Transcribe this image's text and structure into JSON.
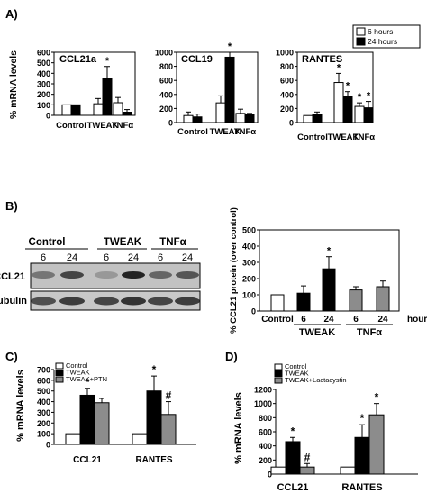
{
  "panel_labels": [
    "A)",
    "B)",
    "C)",
    "D)"
  ],
  "colors": {
    "white": "#ffffff",
    "black": "#000000",
    "gray": "#8c8c8c"
  },
  "blot": {
    "group_labels": [
      "Control",
      "TWEAK",
      "TNFα"
    ],
    "lane_labels": [
      "6",
      "24",
      "6",
      "24",
      "6",
      "24"
    ],
    "row_labels": [
      "CCL21",
      "α-tubulin"
    ]
  },
  "chart_data": [
    {
      "type": "bar",
      "panel": "A",
      "title": "CCL21a",
      "ylabel": "% mRNA levels",
      "categories": [
        "Control",
        "TWEAK",
        "TNFα"
      ],
      "yticks": [
        "0",
        "100",
        "200",
        "300",
        "400",
        "500",
        "600"
      ],
      "ylim": [
        0,
        600
      ],
      "series": [
        {
          "name": "6 hours",
          "color": "white",
          "values": [
            100,
            110,
            120
          ],
          "errors": [
            0,
            50,
            50
          ]
        },
        {
          "name": "24 hours",
          "color": "black",
          "values": [
            100,
            350,
            30
          ],
          "errors": [
            0,
            115,
            25
          ]
        }
      ],
      "annotations": [
        {
          "category": 1,
          "series": 1,
          "text": "*"
        }
      ]
    },
    {
      "type": "bar",
      "panel": "A",
      "title": "CCL19",
      "categories": [
        "Control",
        "TWEAK",
        "TNFα"
      ],
      "yticks": [
        "0",
        "200",
        "400",
        "600",
        "800",
        "1000"
      ],
      "ylim": [
        0,
        1000
      ],
      "series": [
        {
          "name": "6 hours",
          "color": "white",
          "values": [
            100,
            280,
            130
          ],
          "errors": [
            50,
            100,
            60
          ]
        },
        {
          "name": "24 hours",
          "color": "black",
          "values": [
            80,
            930,
            110
          ],
          "errors": [
            40,
            70,
            20
          ]
        }
      ],
      "annotations": [
        {
          "category": 1,
          "series": 1,
          "text": "*"
        }
      ]
    },
    {
      "type": "bar",
      "panel": "A",
      "title": "RANTES",
      "categories": [
        "Control",
        "TWEAK",
        "TNFα"
      ],
      "yticks": [
        "0",
        "200",
        "400",
        "600",
        "800",
        "1000"
      ],
      "ylim": [
        0,
        1000
      ],
      "legend": {
        "position": "top-right",
        "entries": [
          "6 hours",
          "24 hours"
        ]
      },
      "series": [
        {
          "name": "6 hours",
          "color": "white",
          "values": [
            100,
            570,
            230
          ],
          "errors": [
            0,
            130,
            50
          ]
        },
        {
          "name": "24 hours",
          "color": "black",
          "values": [
            120,
            370,
            210
          ],
          "errors": [
            30,
            70,
            90
          ]
        }
      ],
      "annotations": [
        {
          "category": 1,
          "series": 0,
          "text": "*"
        },
        {
          "category": 1,
          "series": 1,
          "text": "*"
        },
        {
          "category": 2,
          "series": 0,
          "text": "*"
        },
        {
          "category": 2,
          "series": 1,
          "text": "*"
        }
      ]
    },
    {
      "type": "bar",
      "panel": "B",
      "ylabel": "% CCL21 protein (over control)",
      "yticks": [
        "0",
        "100",
        "200",
        "300",
        "400",
        "500"
      ],
      "ylim": [
        0,
        500
      ],
      "bar_labels": [
        "Control",
        "6",
        "24",
        "6",
        "24"
      ],
      "group_labels": [
        "TWEAK",
        "TNFα"
      ],
      "x_unit": "hours",
      "bars": [
        {
          "color": "white",
          "value": 100,
          "error": 0
        },
        {
          "color": "black",
          "value": 110,
          "error": 45
        },
        {
          "color": "black",
          "value": 260,
          "error": 75
        },
        {
          "color": "gray",
          "value": 130,
          "error": 20
        },
        {
          "color": "gray",
          "value": 150,
          "error": 35
        }
      ],
      "annotations": [
        {
          "bar": 2,
          "text": "*"
        }
      ]
    },
    {
      "type": "bar",
      "panel": "C",
      "ylabel": "% mRNA levels",
      "categories": [
        "CCL21",
        "RANTES"
      ],
      "yticks": [
        "0",
        "100",
        "200",
        "300",
        "400",
        "500",
        "600",
        "700"
      ],
      "ylim": [
        0,
        700
      ],
      "legend": {
        "position": "top-left",
        "entries": [
          "Control",
          "TWEAK",
          "TWEAK+PTN"
        ]
      },
      "series": [
        {
          "name": "Control",
          "color": "white",
          "values": [
            100,
            100
          ],
          "errors": [
            0,
            0
          ]
        },
        {
          "name": "TWEAK",
          "color": "black",
          "values": [
            460,
            500
          ],
          "errors": [
            65,
            140
          ]
        },
        {
          "name": "TWEAK+PTN",
          "color": "gray",
          "values": [
            390,
            280
          ],
          "errors": [
            40,
            120
          ]
        }
      ],
      "annotations": [
        {
          "category": 0,
          "series": 1,
          "text": "*"
        },
        {
          "category": 1,
          "series": 1,
          "text": "*"
        },
        {
          "category": 1,
          "series": 2,
          "text": "#"
        }
      ]
    },
    {
      "type": "bar",
      "panel": "D",
      "ylabel": "% mRNA levels",
      "categories": [
        "CCL21",
        "RANTES"
      ],
      "yticks": [
        "0",
        "200",
        "400",
        "600",
        "800",
        "1000",
        "1200"
      ],
      "ylim": [
        0,
        1200
      ],
      "legend": {
        "position": "top-left",
        "entries": [
          "Control",
          "TWEAK",
          "TWEAK+Lactacystin"
        ]
      },
      "series": [
        {
          "name": "Control",
          "color": "white",
          "values": [
            100,
            100
          ],
          "errors": [
            0,
            0
          ]
        },
        {
          "name": "TWEAK",
          "color": "black",
          "values": [
            460,
            520
          ],
          "errors": [
            60,
            180
          ]
        },
        {
          "name": "TWEAK+Lactacystin",
          "color": "gray",
          "values": [
            100,
            840
          ],
          "errors": [
            50,
            160
          ]
        }
      ],
      "annotations": [
        {
          "category": 0,
          "series": 1,
          "text": "*"
        },
        {
          "category": 0,
          "series": 2,
          "text": "#"
        },
        {
          "category": 1,
          "series": 1,
          "text": "*"
        },
        {
          "category": 1,
          "series": 2,
          "text": "*"
        }
      ]
    }
  ]
}
